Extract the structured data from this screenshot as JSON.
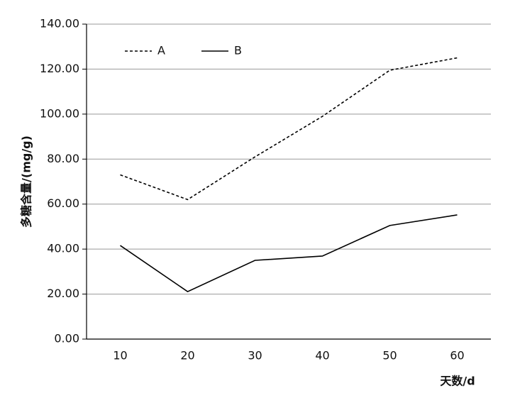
{
  "chart_data": {
    "type": "line",
    "x_label": "天数/d",
    "y_label": "多糖含量/(mg/g)",
    "x": [
      10,
      20,
      30,
      40,
      50,
      60
    ],
    "xlim": [
      5,
      65
    ],
    "xticks": [
      10,
      20,
      30,
      40,
      50,
      60
    ],
    "ylim": [
      0,
      140
    ],
    "yticks": [
      {
        "value": 0,
        "label": "0.00"
      },
      {
        "value": 20,
        "label": "20.00"
      },
      {
        "value": 40,
        "label": "40.00"
      },
      {
        "value": 60,
        "label": "60.00"
      },
      {
        "value": 80,
        "label": "80.00"
      },
      {
        "value": 100,
        "label": "100.00"
      },
      {
        "value": 120,
        "label": "120.00"
      },
      {
        "value": 140,
        "label": "140.00"
      }
    ],
    "grid": true,
    "legend": "top-left",
    "series": [
      {
        "name": "A",
        "color": "#000000",
        "style": "dashed",
        "values": [
          73,
          62,
          81,
          99,
          119.5,
          125
        ]
      },
      {
        "name": "B",
        "color": "#000000",
        "style": "solid",
        "values": [
          41.6,
          21.1,
          35,
          36.9,
          50.5,
          55.2
        ]
      }
    ]
  }
}
